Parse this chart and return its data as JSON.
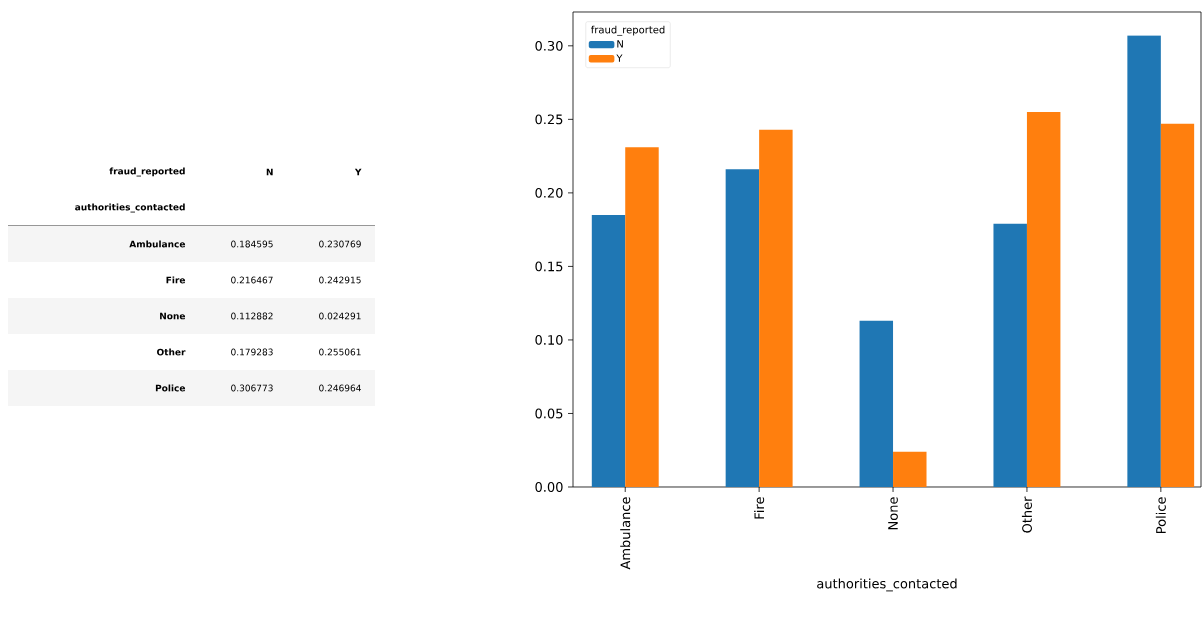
{
  "chart_data": [
    {
      "type": "other",
      "annotations": [
        "fraud_reported",
        "N",
        "Y",
        "authorities_contacted"
      ],
      "categories": [
        "Ambulance",
        "Fire",
        "None",
        "Other",
        "Police"
      ],
      "series": [
        {
          "values": [
            0.184595,
            0.216467,
            0.112882,
            0.179283,
            0.306773
          ]
        },
        {
          "values": [
            0.230769,
            0.242915,
            0.024291,
            0.255061,
            0.246964
          ]
        }
      ],
      "data_labels": true
    },
    {
      "type": "bar",
      "xlabel": "authorities_contacted",
      "legend_title": "fraud_reported",
      "categories": [
        "Ambulance",
        "Fire",
        "None",
        "Other",
        "Police"
      ],
      "series": [
        {
          "name": "N",
          "color": "#1f77b4",
          "values": [
            0.185,
            0.216,
            0.113,
            0.179,
            0.307
          ]
        },
        {
          "name": "Y",
          "color": "#ff7f0e",
          "values": [
            0.231,
            0.243,
            0.024,
            0.255,
            0.247
          ]
        }
      ],
      "ylim": [
        0,
        0.323
      ],
      "yticks": [
        {
          "value": 0,
          "label": "0.00"
        },
        {
          "value": 0.05,
          "label": "0.05"
        },
        {
          "value": 0.1,
          "label": "0.10"
        },
        {
          "value": 0.15,
          "label": "0.15"
        },
        {
          "value": 0.2,
          "label": "0.20"
        },
        {
          "value": 0.25,
          "label": "0.25"
        },
        {
          "value": 0.3,
          "label": "0.30"
        }
      ],
      "legend": "top left"
    }
  ]
}
